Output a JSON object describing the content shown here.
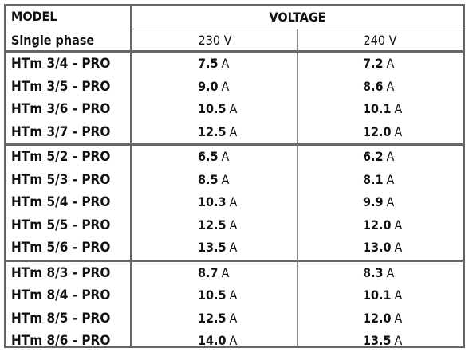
{
  "header": {
    "model": "MODEL",
    "voltage": "VOLTAGE",
    "phase": "Single phase",
    "v1": "230 V",
    "v2": "240 V"
  },
  "table": {
    "groups": [
      {
        "rows": [
          {
            "model": "HTm 3/4 - PRO",
            "v1": {
              "value": "7.5",
              "unit": "A"
            },
            "v2": {
              "value": "7.2",
              "unit": "A"
            }
          },
          {
            "model": "HTm 3/5 - PRO",
            "v1": {
              "value": "9.0",
              "unit": "A"
            },
            "v2": {
              "value": "8.6",
              "unit": "A"
            }
          },
          {
            "model": "HTm 3/6 - PRO",
            "v1": {
              "value": "10.5",
              "unit": "A"
            },
            "v2": {
              "value": "10.1",
              "unit": "A"
            }
          },
          {
            "model": "HTm 3/7 - PRO",
            "v1": {
              "value": "12.5",
              "unit": "A"
            },
            "v2": {
              "value": "12.0",
              "unit": "A"
            }
          }
        ]
      },
      {
        "rows": [
          {
            "model": "HTm 5/2 - PRO",
            "v1": {
              "value": "6.5",
              "unit": "A"
            },
            "v2": {
              "value": "6.2",
              "unit": "A"
            }
          },
          {
            "model": "HTm 5/3 - PRO",
            "v1": {
              "value": "8.5",
              "unit": "A"
            },
            "v2": {
              "value": "8.1",
              "unit": "A"
            }
          },
          {
            "model": "HTm 5/4 - PRO",
            "v1": {
              "value": "10.3",
              "unit": "A"
            },
            "v2": {
              "value": "9.9",
              "unit": "A"
            }
          },
          {
            "model": "HTm 5/5 - PRO",
            "v1": {
              "value": "12.5",
              "unit": "A"
            },
            "v2": {
              "value": "12.0",
              "unit": "A"
            }
          },
          {
            "model": "HTm 5/6 - PRO",
            "v1": {
              "value": "13.5",
              "unit": "A"
            },
            "v2": {
              "value": "13.0",
              "unit": "A"
            }
          }
        ]
      },
      {
        "rows": [
          {
            "model": "HTm 8/3 - PRO",
            "v1": {
              "value": "8.7",
              "unit": "A"
            },
            "v2": {
              "value": "8.3",
              "unit": "A"
            }
          },
          {
            "model": "HTm 8/4 - PRO",
            "v1": {
              "value": "10.5",
              "unit": "A"
            },
            "v2": {
              "value": "10.1",
              "unit": "A"
            }
          },
          {
            "model": "HTm 8/5 - PRO",
            "v1": {
              "value": "12.5",
              "unit": "A"
            },
            "v2": {
              "value": "12.0",
              "unit": "A"
            }
          },
          {
            "model": "HTm 8/6 - PRO",
            "v1": {
              "value": "14.0",
              "unit": "A"
            },
            "v2": {
              "value": "13.5",
              "unit": "A"
            }
          }
        ]
      }
    ]
  }
}
